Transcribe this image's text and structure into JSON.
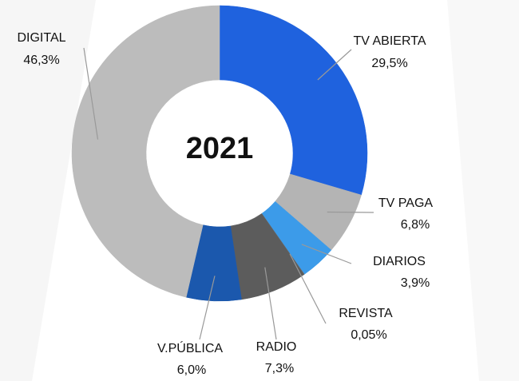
{
  "chart_data": {
    "type": "pie",
    "title": "2021",
    "categories": [
      "TV ABIERTA",
      "TV PAGA",
      "DIARIOS",
      "REVISTA",
      "RADIO",
      "V.PÚBLICA",
      "DIGITAL"
    ],
    "values": [
      29.5,
      6.8,
      3.9,
      0.05,
      7.3,
      6.0,
      46.3
    ],
    "value_labels": [
      "29,5%",
      "6,8%",
      "3,9%",
      "0,05%",
      "7,3%",
      "6,0%",
      "46,3%"
    ],
    "colors": [
      "#1f62de",
      "#b4b4b4",
      "#3c9be9",
      "#6e6e6e",
      "#5c5c5c",
      "#1b58ad",
      "#bcbcbc"
    ]
  }
}
